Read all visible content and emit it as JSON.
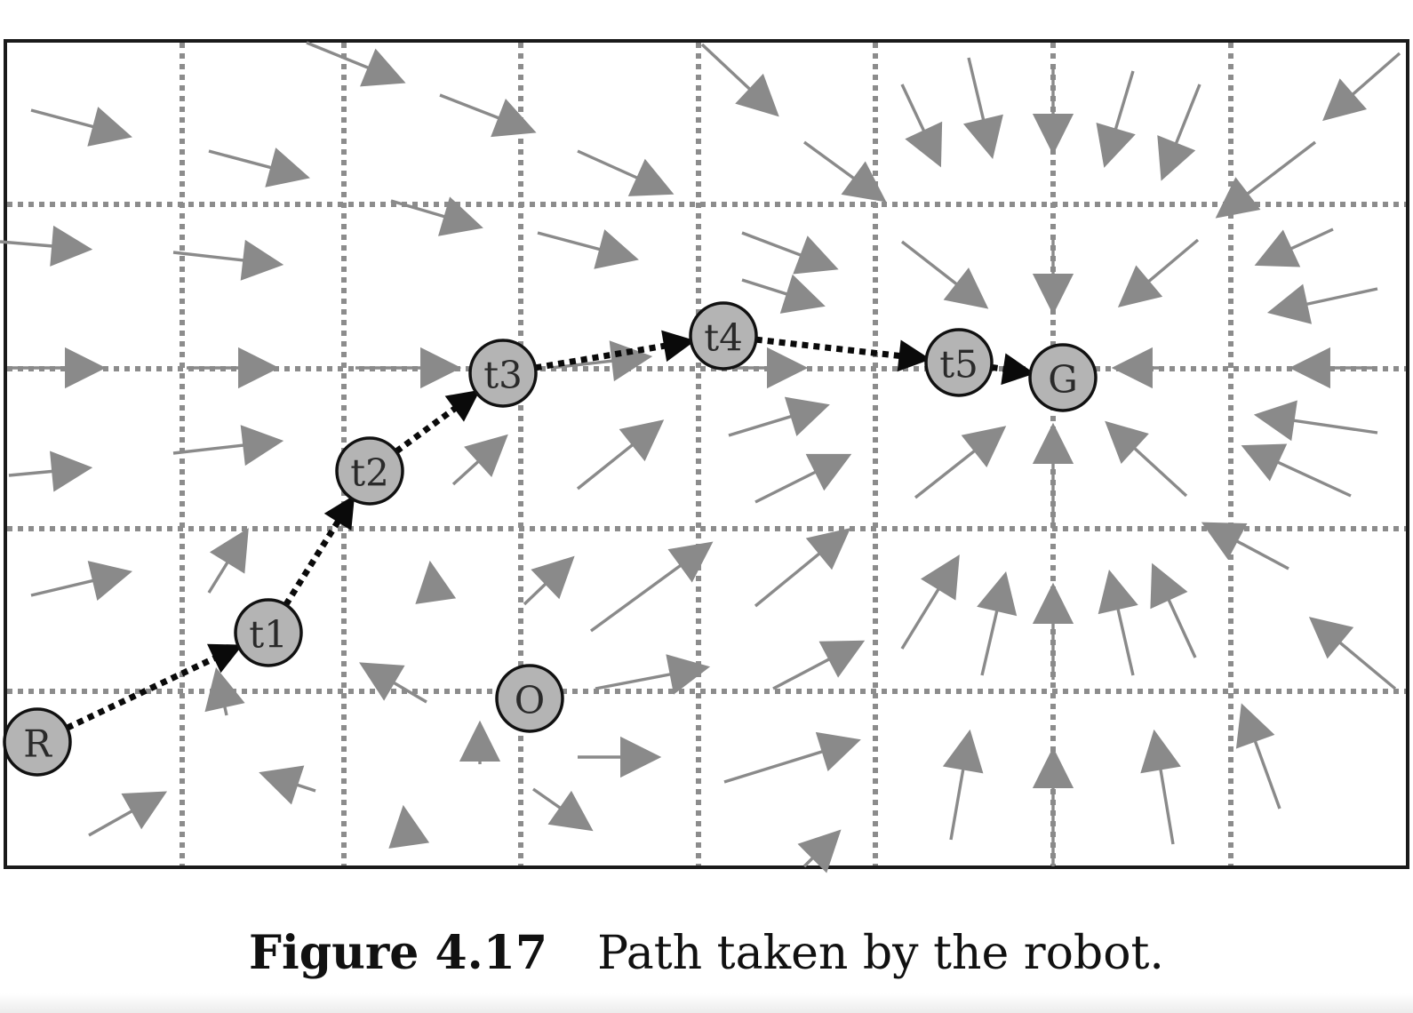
{
  "caption": {
    "number": "Figure 4.17",
    "text": "Path taken by the robot."
  },
  "nodes": [
    {
      "id": "R",
      "label": "R",
      "role": "robot-start"
    },
    {
      "id": "t1",
      "label": "t1",
      "role": "waypoint"
    },
    {
      "id": "t2",
      "label": "t2",
      "role": "waypoint"
    },
    {
      "id": "t3",
      "label": "t3",
      "role": "waypoint"
    },
    {
      "id": "t4",
      "label": "t4",
      "role": "waypoint"
    },
    {
      "id": "t5",
      "label": "t5",
      "role": "waypoint"
    },
    {
      "id": "G",
      "label": "G",
      "role": "goal"
    },
    {
      "id": "O",
      "label": "O",
      "role": "obstacle"
    }
  ],
  "path": [
    "R",
    "t1",
    "t2",
    "t3",
    "t4",
    "t5",
    "G"
  ],
  "colors": {
    "node_fill": "#b4b4b4",
    "field_arrow": "#8a8a8a",
    "grid": "#8c8c8c",
    "path": "#0a0a0a"
  }
}
